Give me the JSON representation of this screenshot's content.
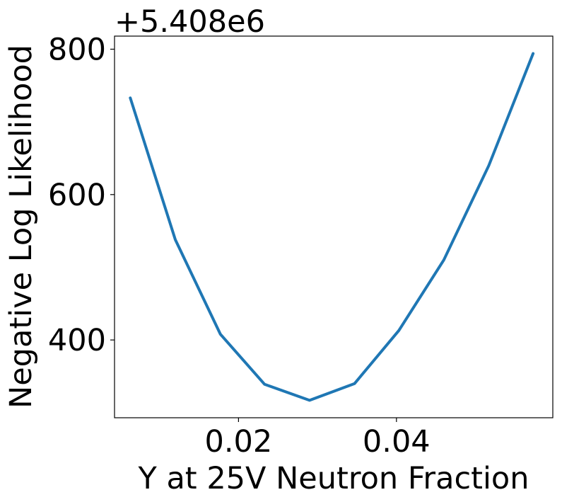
{
  "chart_data": {
    "type": "line",
    "title": "",
    "xlabel": "Y at 25V Neutron Fraction",
    "ylabel": "Negative Log Likelihood",
    "y_offset_label": "+5.408e6",
    "xlim": [
      0.0043,
      0.0598
    ],
    "ylim": [
      293,
      818
    ],
    "xticks": [
      0.02,
      0.04
    ],
    "xtick_labels": [
      "0.02",
      "0.04"
    ],
    "yticks": [
      400,
      600,
      800
    ],
    "ytick_labels": [
      "400",
      "600",
      "800"
    ],
    "grid": false,
    "series": [
      {
        "color": "#1f77b4",
        "x": [
          0.0063,
          0.012,
          0.0177,
          0.0233,
          0.029,
          0.0347,
          0.0403,
          0.046,
          0.0517,
          0.0573
        ],
        "y": [
          733,
          538,
          408,
          339,
          317,
          340,
          413,
          510,
          640,
          794
        ]
      }
    ]
  }
}
